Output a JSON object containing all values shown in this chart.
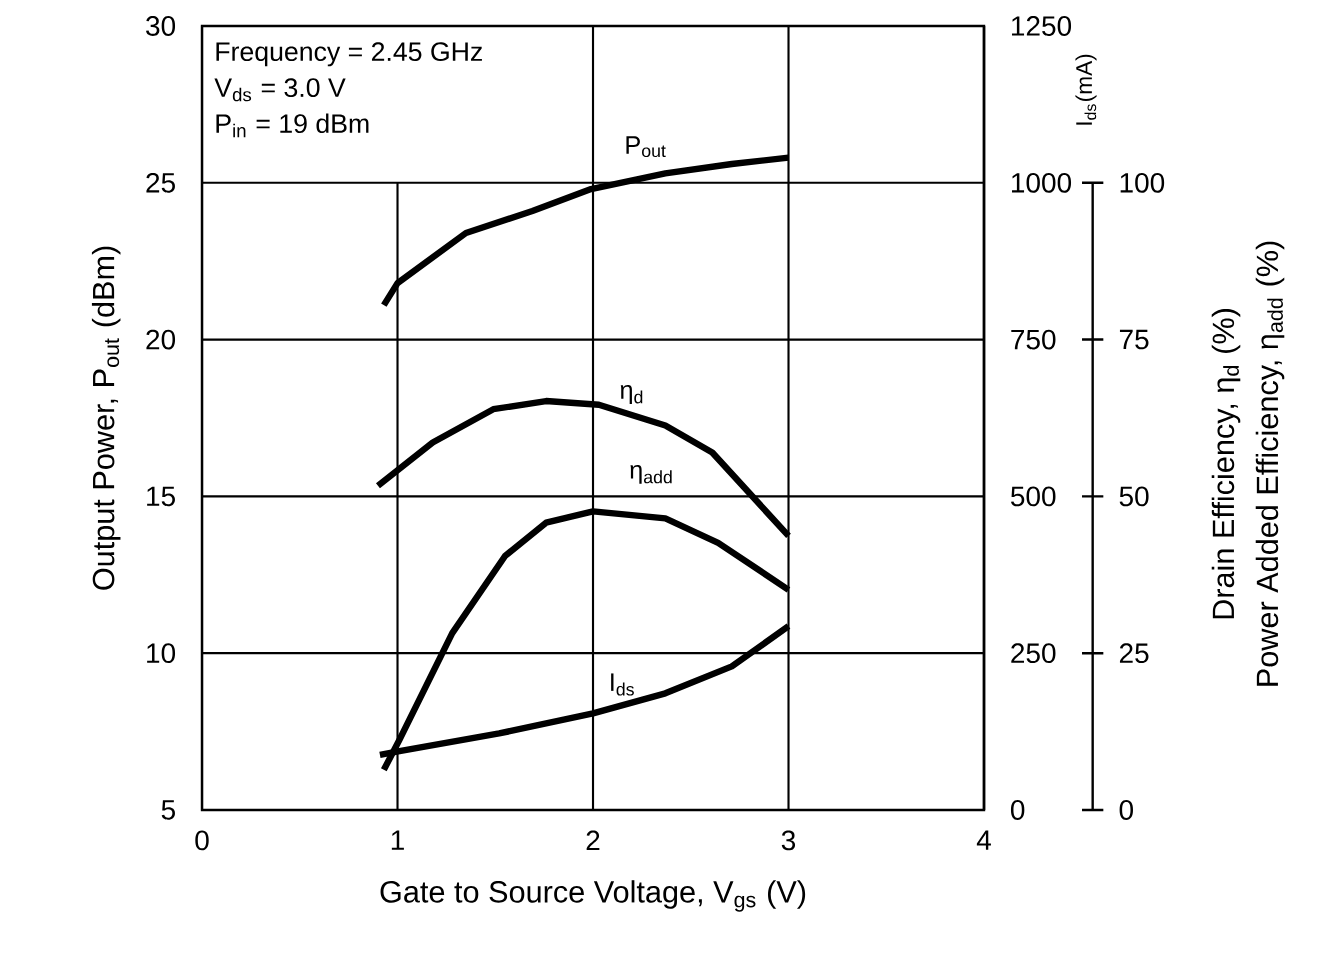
{
  "chart_data": {
    "type": "line",
    "xlabel": "Gate to Source Voltage, V$_{gs}$ (V)",
    "ylabel": "Output Power, P$_{out}$ (dBm)",
    "y2label": "I$_{ds}$(mA)",
    "y3label": [
      "Drain Efficiency,  η$_{d}$ (%)",
      "Power Added Efficiency, η$_{add}$ (%)"
    ],
    "annotations": [
      "Frequency = 2.45 GHz",
      "V$_{ds}$ = 3.0 V",
      "P$_{in}$ = 19 dBm"
    ],
    "xlim": [
      0,
      4
    ],
    "xticks": [
      0,
      1,
      2,
      3,
      4
    ],
    "ylim": [
      5,
      30
    ],
    "yticks": [
      5,
      10,
      15,
      20,
      25,
      30
    ],
    "y2lim": [
      0,
      1250
    ],
    "y2ticks": [
      0,
      250,
      500,
      750,
      1000,
      1250
    ],
    "y3lim": [
      0,
      125
    ],
    "y3ticks": [
      0,
      25,
      50,
      75,
      100
    ],
    "grid": true,
    "series": [
      {
        "name": "P$_{out}$",
        "color": "#000000",
        "x": [
          0.93,
          1.0,
          1.35,
          1.69,
          1.99,
          2.37,
          2.71,
          3.0
        ],
        "values": [
          21.1,
          21.8,
          23.4,
          24.1,
          24.8,
          25.3,
          25.6,
          25.8
        ]
      },
      {
        "name": "η$_{d}$",
        "color": "#000000",
        "axis": "y3",
        "x": [
          0.9,
          1.18,
          1.49,
          1.76,
          2.03,
          2.37,
          2.61,
          3.0
        ],
        "values": [
          51.7,
          58.6,
          63.9,
          65.2,
          64.6,
          61.3,
          57.0,
          43.7
        ]
      },
      {
        "name": "η$_{add}$",
        "color": "#000000",
        "axis": "y3",
        "x": [
          0.93,
          1.01,
          1.28,
          1.55,
          1.76,
          2.0,
          2.37,
          2.64,
          3.0
        ],
        "values": [
          6.4,
          11.2,
          28.2,
          40.5,
          45.8,
          47.6,
          46.5,
          42.6,
          35.1
        ]
      },
      {
        "name": "I$_{ds}$",
        "color": "#000000",
        "axis": "y2",
        "x": [
          0.91,
          1.01,
          1.52,
          2.0,
          2.37,
          2.71,
          3.0
        ],
        "values": [
          88,
          94,
          122,
          154,
          186,
          229,
          293
        ]
      }
    ]
  }
}
